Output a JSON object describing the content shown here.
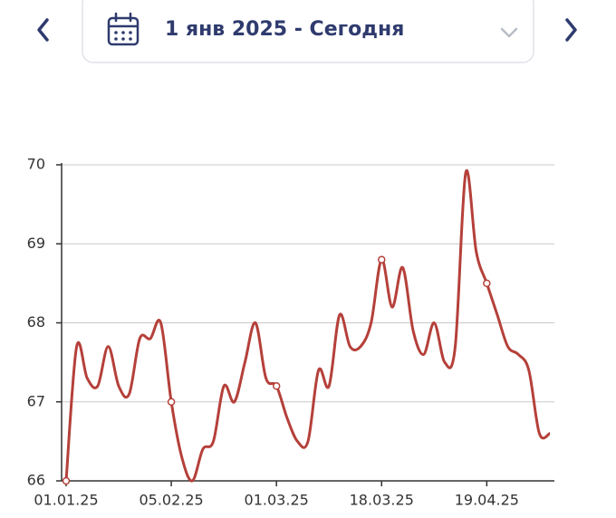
{
  "header": {
    "date_range": "1 янв 2025 - Сегодня"
  },
  "chart_data": {
    "type": "line",
    "categories": [
      "01.01.25",
      null,
      null,
      null,
      null,
      null,
      null,
      null,
      null,
      null,
      "05.02.25",
      null,
      null,
      null,
      null,
      null,
      null,
      null,
      null,
      null,
      "01.03.25",
      null,
      null,
      null,
      null,
      null,
      null,
      null,
      null,
      null,
      "18.03.25",
      null,
      null,
      null,
      null,
      null,
      null,
      null,
      null,
      null,
      "19.04.25",
      null,
      null,
      null,
      null,
      null,
      null
    ],
    "values": [
      66.0,
      67.7,
      67.3,
      67.2,
      67.7,
      67.2,
      67.1,
      67.8,
      67.8,
      68.0,
      67.0,
      66.3,
      66.0,
      66.4,
      66.5,
      67.2,
      67.0,
      67.5,
      68.0,
      67.3,
      67.2,
      66.8,
      66.5,
      66.5,
      67.4,
      67.2,
      68.1,
      67.7,
      67.7,
      68.0,
      68.8,
      68.2,
      68.7,
      67.9,
      67.6,
      68.0,
      67.5,
      67.7,
      69.9,
      68.9,
      68.5,
      68.1,
      67.7,
      67.6,
      67.4,
      66.6,
      66.6
    ],
    "color": "#b5403a",
    "ylim": [
      66,
      70
    ],
    "yticks": [
      66,
      67,
      68,
      69,
      70
    ],
    "grid": true
  }
}
